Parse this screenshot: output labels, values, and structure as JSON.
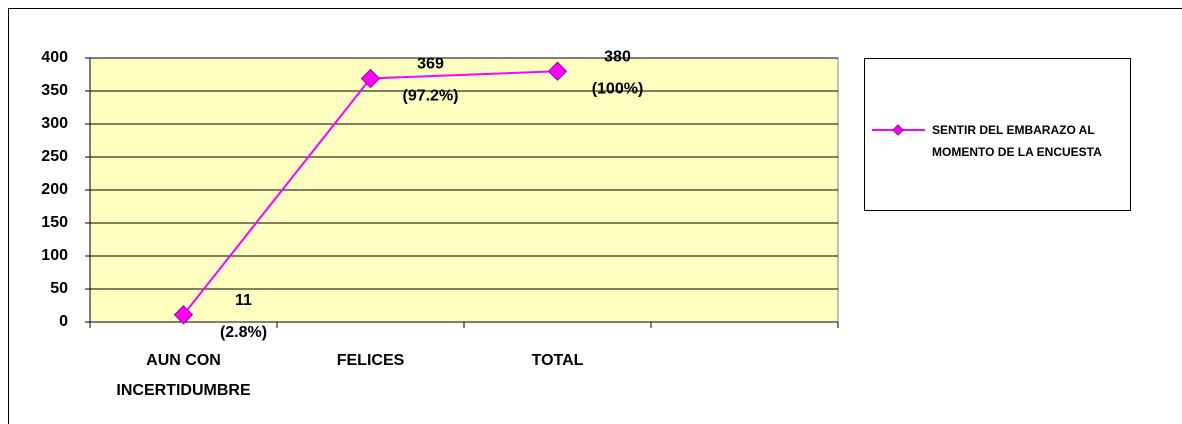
{
  "chart_data": {
    "type": "line",
    "categories": [
      "AUN CON INCERTIDUMBRE",
      "FELICES",
      "TOTAL",
      null
    ],
    "series": [
      {
        "name": "SENTIR DEL EMBARAZO AL MOMENTO DE LA ENCUESTA",
        "color": "#ff00ff",
        "values": [
          11,
          369,
          380,
          null
        ],
        "value_labels": [
          "11",
          "369",
          "380",
          null
        ],
        "percent_labels": [
          "(2.8%)",
          "(97.2%)",
          "(100%)",
          null
        ]
      }
    ],
    "ylim": [
      0,
      400
    ],
    "yticks": [
      0,
      50,
      100,
      150,
      200,
      250,
      300,
      350,
      400
    ],
    "grid": true,
    "legend": "right"
  }
}
